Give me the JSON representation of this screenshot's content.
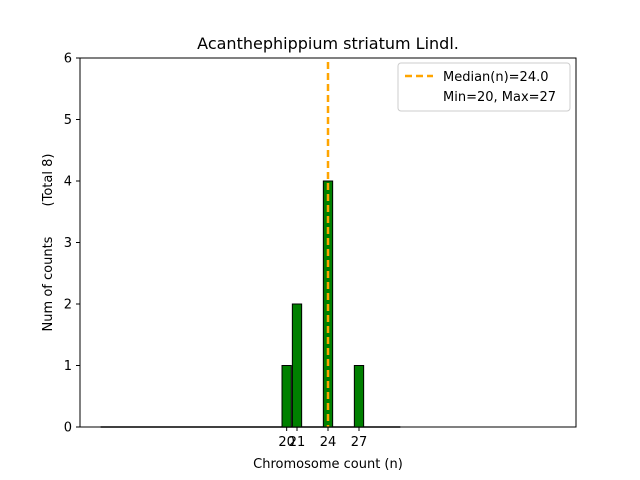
{
  "chart_data": {
    "type": "bar",
    "title": "Acanthephippium striatum Lindl.",
    "xlabel": "Chromosome count (n)",
    "ylabel": "Num of counts",
    "ylabel_total": "(Total 8)",
    "x_range": [
      0,
      48
    ],
    "ylim": [
      0,
      6
    ],
    "y_ticks": [
      0,
      1,
      2,
      3,
      4,
      5,
      6
    ],
    "x_ticks": [
      20,
      21,
      24,
      27
    ],
    "bars": [
      {
        "x": 20,
        "value": 1
      },
      {
        "x": 21,
        "value": 2
      },
      {
        "x": 24,
        "value": 4
      },
      {
        "x": 27,
        "value": 1
      }
    ],
    "bar_color": "#008000",
    "bar_edge_color": "#000000",
    "median": 24.0,
    "median_color": "#ffa500",
    "legend_position": "top-right",
    "legend": [
      {
        "label": "Median(n)=24.0",
        "marker": "dashed-line"
      },
      {
        "label": "Min=20, Max=27",
        "marker": "none"
      }
    ],
    "grid": false
  }
}
